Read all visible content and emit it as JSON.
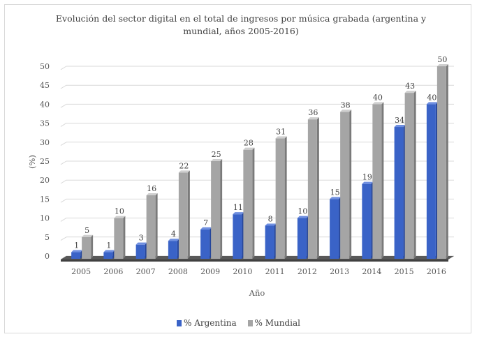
{
  "chart_data": {
    "type": "bar",
    "title": "Evolución del sector digital en el total de ingresos por música grabada (argentina y mundial, años 2005-2016)",
    "xlabel": "Año",
    "ylabel": "(%)",
    "categories": [
      "2005",
      "2006",
      "2007",
      "2008",
      "2009",
      "2010",
      "2011",
      "2012",
      "2013",
      "2014",
      "2015",
      "2016"
    ],
    "series": [
      {
        "name": "% Argentina",
        "values": [
          1,
          1,
          3,
          4,
          7,
          11,
          8,
          10,
          15,
          19,
          34,
          40
        ]
      },
      {
        "name": "% Mundial",
        "values": [
          5,
          10,
          16,
          22,
          25,
          28,
          31,
          36,
          38,
          40,
          43,
          50
        ]
      }
    ],
    "y_ticks": [
      "0",
      "5",
      "10",
      "15",
      "20",
      "25",
      "30",
      "35",
      "40",
      "45",
      "50"
    ],
    "ylim": [
      0,
      50
    ],
    "grid": true,
    "legend_position": "bottom",
    "colors": {
      "argentina": "#3a63c7",
      "mundial": "#a5a5a5",
      "grid": "#d9d9d9",
      "floor": "#595959"
    }
  }
}
